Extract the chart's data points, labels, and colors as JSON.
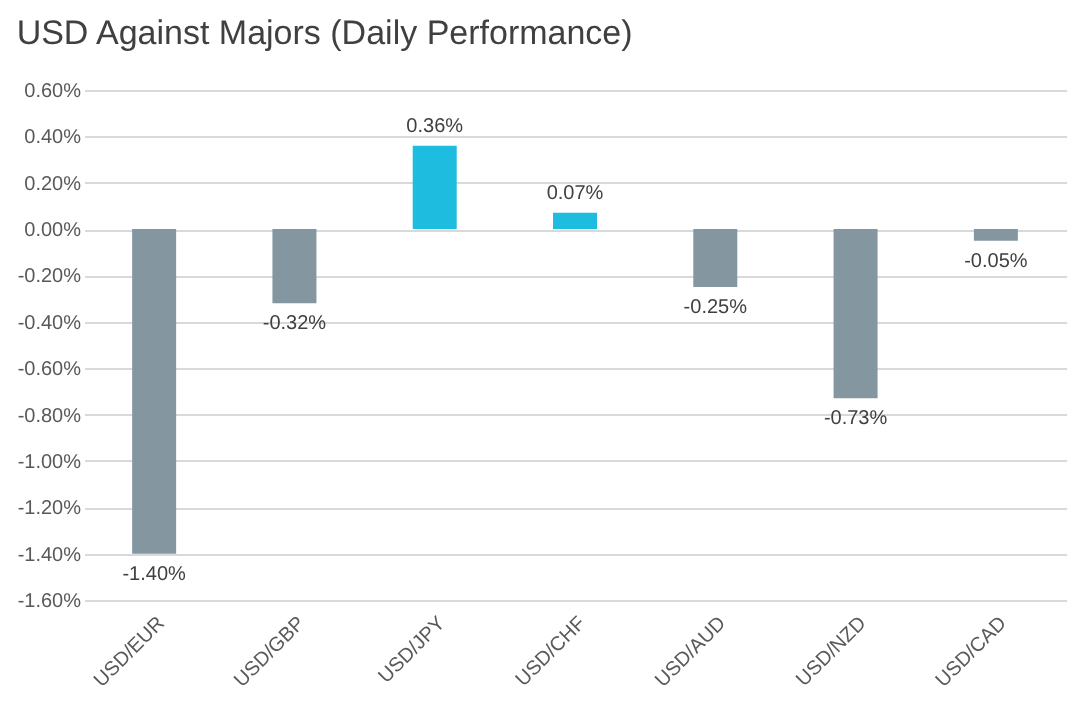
{
  "chart_data": {
    "type": "bar",
    "title": "USD Against Majors (Daily Performance)",
    "categories": [
      "USD/EUR",
      "USD/GBP",
      "USD/JPY",
      "USD/CHF",
      "USD/AUD",
      "USD/NZD",
      "USD/CAD"
    ],
    "values": [
      -1.4,
      -0.32,
      0.36,
      0.07,
      -0.25,
      -0.73,
      -0.05
    ],
    "colors": [
      "#8497a0",
      "#8497a0",
      "#1ebde0",
      "#1ebde0",
      "#8497a0",
      "#8497a0",
      "#8497a0"
    ],
    "value_labels": [
      "-1.40%",
      "-0.32%",
      "0.36%",
      "0.07%",
      "-0.25%",
      "-0.73%",
      "-0.05%"
    ],
    "ylim": [
      -1.6,
      0.6
    ],
    "yticks": [
      {
        "value": 0.6,
        "label": "0.60%"
      },
      {
        "value": 0.4,
        "label": "0.40%"
      },
      {
        "value": 0.2,
        "label": "0.20%"
      },
      {
        "value": 0,
        "label": "0.00%"
      },
      {
        "value": -0.2,
        "label": "-0.20%"
      },
      {
        "value": -0.4,
        "label": "-0.40%"
      },
      {
        "value": -0.6,
        "label": "-0.60%"
      },
      {
        "value": -0.8,
        "label": "-0.80%"
      },
      {
        "value": -1.0,
        "label": "-1.00%"
      },
      {
        "value": -1.2,
        "label": "-1.20%"
      },
      {
        "value": -1.4,
        "label": "-1.40%"
      },
      {
        "value": -1.6,
        "label": "-1.60%"
      }
    ],
    "grid": "y"
  }
}
